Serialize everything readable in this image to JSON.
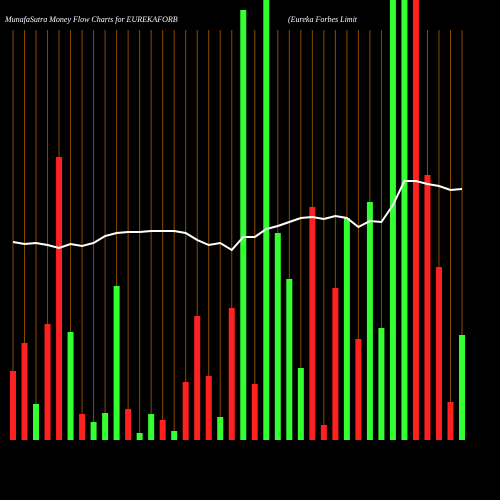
{
  "chart_data": {
    "type": "bar",
    "title": "MunafaSutra  Money Flow  Charts for EUREKAFORB",
    "subtitle": "(Eureka  Forbes Limit",
    "values": [
      69,
      97,
      36,
      116,
      283,
      108,
      26,
      18,
      27,
      154,
      31,
      7,
      26,
      20,
      9,
      58,
      124,
      64,
      23,
      132,
      430,
      56,
      440,
      207,
      161,
      72,
      233,
      15,
      152,
      222,
      101,
      238,
      112,
      440,
      440,
      440,
      265,
      173,
      38,
      105
    ],
    "colors": [
      "#ff2020",
      "#ff2020",
      "#33ff33",
      "#ff2020",
      "#ff2020",
      "#33ff33",
      "#ff2020",
      "#33ff33",
      "#33ff33",
      "#33ff33",
      "#ff2020",
      "#33ff33",
      "#33ff33",
      "#ff2020",
      "#33ff33",
      "#ff2020",
      "#ff2020",
      "#ff2020",
      "#33ff33",
      "#ff2020",
      "#33ff33",
      "#ff2020",
      "#33ff33",
      "#33ff33",
      "#33ff33",
      "#33ff33",
      "#ff2020",
      "#ff2020",
      "#ff2020",
      "#33ff33",
      "#ff2020",
      "#33ff33",
      "#33ff33",
      "#33ff33",
      "#33ff33",
      "#ff2020",
      "#ff2020",
      "#ff2020",
      "#ff2020",
      "#33ff33"
    ],
    "line": {
      "color": "#ffffff",
      "values": [
        198,
        196,
        197,
        195,
        192,
        196,
        194,
        197,
        204,
        207,
        208,
        208,
        209,
        209,
        209,
        207,
        200,
        195,
        197,
        190,
        203,
        203,
        211,
        214,
        218,
        222,
        223,
        221,
        224,
        222,
        213,
        219,
        218,
        235,
        259,
        259,
        256,
        254,
        250,
        251
      ]
    },
    "ylim": [
      0,
      440
    ],
    "grid_color": "#8a4a00"
  }
}
